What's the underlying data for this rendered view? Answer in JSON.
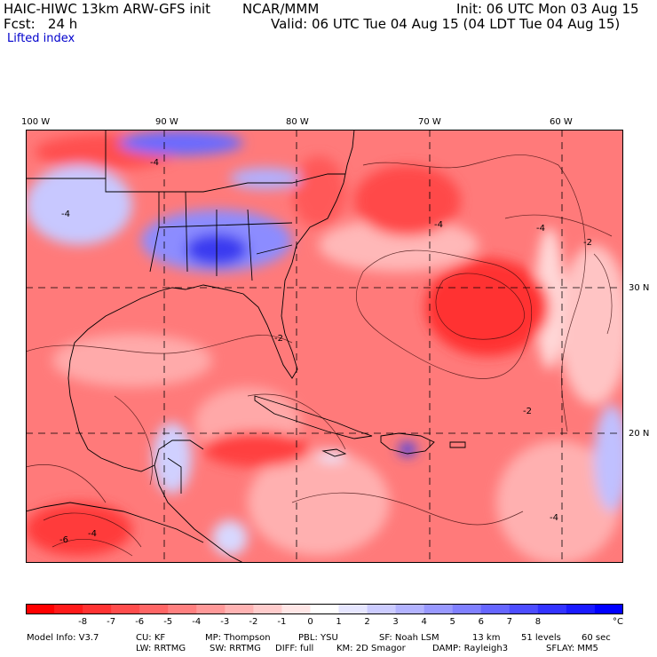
{
  "header": {
    "title_left": "HAIC-HIWC 13km ARW-GFS init",
    "org": "NCAR/MMM",
    "init": "Init: 06 UTC Mon 03 Aug 15",
    "fcst": "Fcst:   24 h",
    "valid": "Valid: 06 UTC Tue 04 Aug 15 (04 LDT Tue 04 Aug 15)",
    "field": "Lifted index"
  },
  "axes": {
    "lon_labels": [
      "100 W",
      "90 W",
      "80 W",
      "70 W",
      "60 W"
    ],
    "lat_labels": [
      "30 N",
      "20 N"
    ]
  },
  "contour_labels": [
    "-4",
    "-4",
    "-2",
    "-4",
    "-4",
    "-2",
    "-4",
    "-2",
    "-6",
    "-4"
  ],
  "colorbar": {
    "labels": [
      "-8",
      "-7",
      "-6",
      "-5",
      "-4",
      "-3",
      "-2",
      "-1",
      "0",
      "1",
      "2",
      "3",
      "4",
      "5",
      "6",
      "7",
      "8",
      "°C"
    ],
    "colors": [
      "#ff0000",
      "#ff1a1a",
      "#ff3333",
      "#ff4d4d",
      "#ff6666",
      "#ff8080",
      "#ff9999",
      "#ffb3b3",
      "#ffcccc",
      "#ffe6e6",
      "#ffffff",
      "#e6e6ff",
      "#ccccff",
      "#b3b3ff",
      "#9999ff",
      "#8080ff",
      "#6666ff",
      "#4d4dff",
      "#3333ff",
      "#1a1aff",
      "#0000ff"
    ]
  },
  "footer": {
    "line1": [
      "Model Info: V3.7",
      "CU: KF",
      "MP: Thompson",
      "PBL: YSU",
      "SF: Noah LSM",
      "13 km",
      "51 levels",
      "60 sec"
    ],
    "line2": [
      "LW: RRTMG",
      "SW: RRTMG",
      "DIFF: full",
      "KM: 2D Smagor",
      "DAMP: Rayleigh3",
      "SFLAY: MM5"
    ]
  },
  "colors": {
    "neg_strong": "#ff2020",
    "neg_mid": "#ff6060",
    "neg_light": "#ffb0b0",
    "pos_light": "#d8d8ff",
    "pos_strong": "#2020ee"
  }
}
